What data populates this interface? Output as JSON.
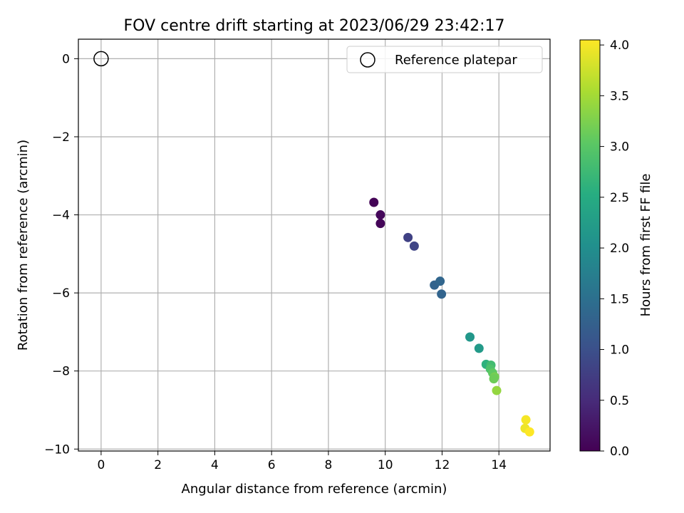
{
  "chart_data": {
    "type": "scatter",
    "title": "FOV centre drift starting at 2023/06/29 23:42:17",
    "xlabel": "Angular distance from reference (arcmin)",
    "ylabel": "Rotation from reference (arcmin)",
    "xlim": [
      -0.8,
      15.8
    ],
    "ylim": [
      -10.05,
      0.5
    ],
    "xticks": [
      0,
      2,
      4,
      6,
      8,
      10,
      12,
      14
    ],
    "yticks": [
      0,
      -2,
      -4,
      -6,
      -8,
      -10
    ],
    "xtick_labels": [
      "0",
      "2",
      "4",
      "6",
      "8",
      "10",
      "12",
      "14"
    ],
    "ytick_labels": [
      "0",
      "−2",
      "−4",
      "−6",
      "−8",
      "−10"
    ],
    "grid": true,
    "legend": {
      "position": "top-right",
      "entries": [
        {
          "label": "Reference platepar",
          "marker": "open-circle"
        }
      ]
    },
    "reference_point": {
      "x": 0,
      "y": 0
    },
    "colorbar": {
      "label": "Hours from first FF file",
      "range": [
        0.0,
        4.05
      ],
      "ticks": [
        0.0,
        0.5,
        1.0,
        1.5,
        2.0,
        2.5,
        3.0,
        3.5,
        4.0
      ],
      "tick_labels": [
        "0.0",
        "0.5",
        "1.0",
        "1.5",
        "2.0",
        "2.5",
        "3.0",
        "3.5",
        "4.0"
      ],
      "colormap": "viridis"
    },
    "points": [
      {
        "x": 9.6,
        "y": -3.68,
        "hours": 0.03
      },
      {
        "x": 9.83,
        "y": -4.0,
        "hours": 0.08
      },
      {
        "x": 9.83,
        "y": -4.22,
        "hours": 0.05
      },
      {
        "x": 10.8,
        "y": -4.58,
        "hours": 0.8
      },
      {
        "x": 11.02,
        "y": -4.8,
        "hours": 0.85
      },
      {
        "x": 11.73,
        "y": -5.8,
        "hours": 1.3
      },
      {
        "x": 11.93,
        "y": -5.7,
        "hours": 1.35
      },
      {
        "x": 11.98,
        "y": -6.03,
        "hours": 1.32
      },
      {
        "x": 12.98,
        "y": -7.13,
        "hours": 2.15
      },
      {
        "x": 13.3,
        "y": -7.42,
        "hours": 2.2
      },
      {
        "x": 13.55,
        "y": -7.83,
        "hours": 2.6
      },
      {
        "x": 13.72,
        "y": -7.85,
        "hours": 2.8
      },
      {
        "x": 13.7,
        "y": -7.95,
        "hours": 2.9
      },
      {
        "x": 13.78,
        "y": -8.05,
        "hours": 3.05
      },
      {
        "x": 13.85,
        "y": -8.15,
        "hours": 3.2
      },
      {
        "x": 13.82,
        "y": -8.2,
        "hours": 3.15
      },
      {
        "x": 13.92,
        "y": -8.5,
        "hours": 3.4
      },
      {
        "x": 14.92,
        "y": -9.47,
        "hours": 3.95
      },
      {
        "x": 14.95,
        "y": -9.25,
        "hours": 4.0
      },
      {
        "x": 15.08,
        "y": -9.56,
        "hours": 4.05
      }
    ]
  }
}
